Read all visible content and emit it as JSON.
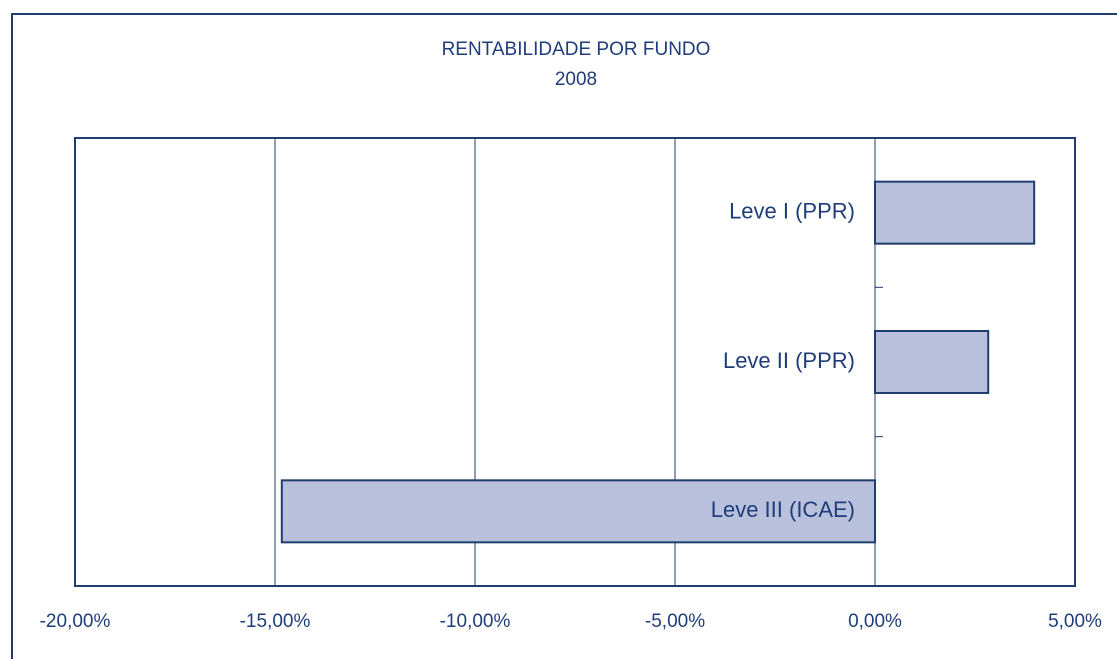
{
  "chart_data": {
    "type": "barh",
    "title": "RENTABILIDADE POR FUNDO",
    "subtitle": "2008",
    "categories": [
      "Leve I (PPR)",
      "Leve II (PPR)",
      "Leve III (ICAE)"
    ],
    "values": [
      3.98,
      2.83,
      -14.83
    ],
    "color": "#b8c0dc",
    "xlim": [
      -20,
      5
    ],
    "xticks": [
      {
        "value": -20,
        "label": "-20,00%"
      },
      {
        "value": -15,
        "label": "-15,00%"
      },
      {
        "value": -10,
        "label": "-10,00%"
      },
      {
        "value": -5,
        "label": "-5,00%"
      },
      {
        "value": 0,
        "label": "0,00%"
      },
      {
        "value": 5,
        "label": "5,00%"
      }
    ],
    "grid": true
  }
}
